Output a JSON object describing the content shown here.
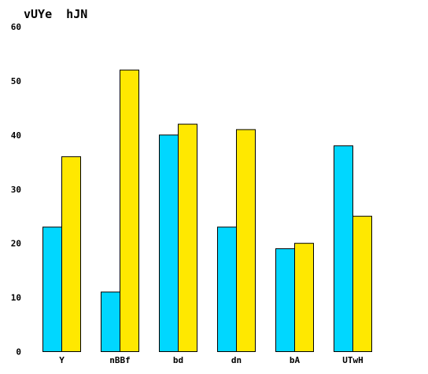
{
  "chart_data": {
    "type": "bar",
    "title": "vUYe  hJN",
    "xlabel": "",
    "ylabel": "",
    "categories": [
      "Y",
      "nBBf",
      "bd",
      "dn",
      "bA",
      "UTwH"
    ],
    "series": [
      {
        "color": "#00d7ff",
        "values": [
          23,
          11,
          40,
          23,
          19,
          38
        ]
      },
      {
        "color": "#ffe800",
        "values": [
          36,
          52,
          42,
          41,
          20,
          25
        ]
      }
    ],
    "ylim": [
      0,
      60
    ],
    "yticks": [
      0,
      10,
      20,
      30,
      40,
      50,
      60
    ],
    "grid": false,
    "legend": "none"
  }
}
